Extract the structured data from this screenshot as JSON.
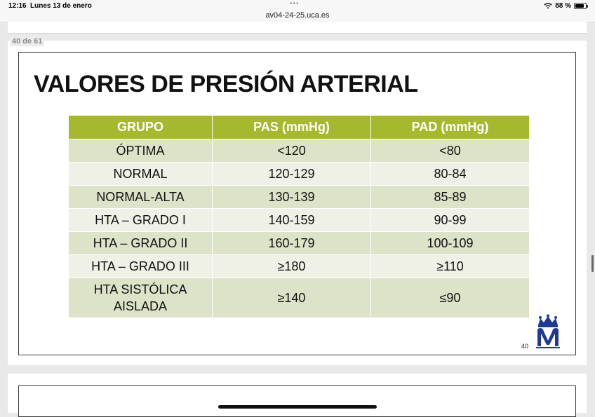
{
  "status_bar": {
    "time": "12:16",
    "date": "Lunes 13 de enero",
    "url": "av04-24-25.uca.es",
    "battery": "88 %",
    "icons": {
      "wifi": "wifi-icon",
      "battery": "battery-icon",
      "menu": "more-dots-icon"
    }
  },
  "viewer": {
    "page_indicator": "40 de 61"
  },
  "slide": {
    "title": "VALORES DE PRESIÓN ARTERIAL",
    "slide_number": "40",
    "colors": {
      "header": "#a6b82e",
      "row_odd": "#dde3c8",
      "row_even": "#eff1e7",
      "logo": "#1f3a93"
    },
    "table": {
      "headers": [
        "GRUPO",
        "PAS (mmHg)",
        "PAD (mmHg)"
      ],
      "rows": [
        [
          "ÓPTIMA",
          "<120",
          "<80"
        ],
        [
          "NORMAL",
          "120-129",
          "80-84"
        ],
        [
          "NORMAL-ALTA",
          "130-139",
          "85-89"
        ],
        [
          "HTA – GRADO I",
          "140-159",
          "90-99"
        ],
        [
          "HTA – GRADO II",
          "160-179",
          "100-109"
        ],
        [
          "HTA – GRADO III",
          "≥180",
          "≥110"
        ],
        [
          "HTA SISTÓLICA AISLADA",
          "≥140",
          "≤90"
        ]
      ]
    }
  }
}
